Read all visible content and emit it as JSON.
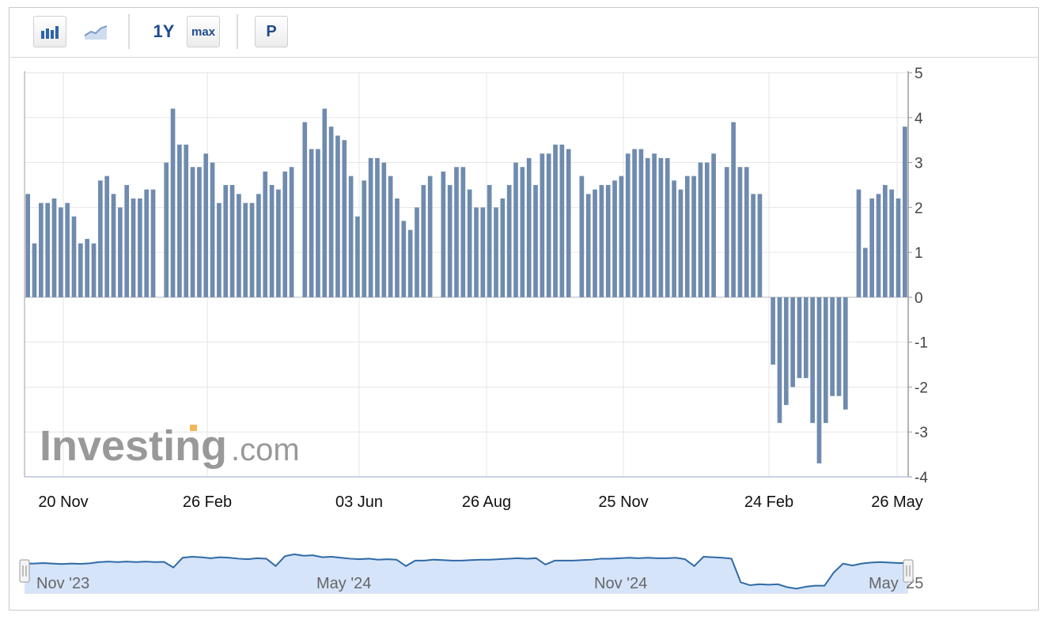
{
  "toolbar": {
    "range_1y": "1Y",
    "range_max": "max",
    "p_button": "P"
  },
  "watermark": {
    "brand": "Investing",
    "suffix": ".com"
  },
  "navigator": {
    "labels": [
      "Nov '23",
      "May '24",
      "Nov '24",
      "May '25"
    ]
  },
  "colors": {
    "bar": "#6f8bae",
    "nav_fill": "#d6e4fa",
    "nav_line": "#2e6aa6",
    "grid": "#e6e6e6"
  },
  "chart_data": {
    "type": "bar",
    "ylim": [
      -4,
      5
    ],
    "yticks": [
      "5",
      "4",
      "3",
      "2",
      "1",
      "0",
      "-1",
      "-2",
      "-3",
      "-4"
    ],
    "xtick_labels": [
      "20 Nov",
      "26 Feb",
      "03 Jun",
      "26 Aug",
      "25 Nov",
      "24 Feb",
      "26 May"
    ],
    "grid": true,
    "values": [
      2.3,
      1.2,
      2.1,
      2.1,
      2.2,
      2.0,
      2.1,
      1.8,
      1.2,
      1.3,
      1.2,
      2.6,
      2.7,
      2.3,
      2.0,
      2.5,
      2.2,
      2.2,
      2.4,
      2.4,
      null,
      3.0,
      4.2,
      3.4,
      3.4,
      2.9,
      2.9,
      3.2,
      3.0,
      2.1,
      2.5,
      2.5,
      2.3,
      2.1,
      2.1,
      2.3,
      2.8,
      2.5,
      2.4,
      2.8,
      2.9,
      null,
      3.9,
      3.3,
      3.3,
      4.2,
      3.8,
      3.6,
      3.5,
      2.7,
      1.8,
      2.6,
      3.1,
      3.1,
      3.0,
      2.7,
      2.2,
      1.7,
      1.5,
      2.0,
      2.5,
      2.7,
      null,
      2.8,
      2.5,
      2.9,
      2.9,
      2.4,
      2.0,
      2.0,
      2.5,
      2.0,
      2.2,
      2.5,
      3.0,
      2.9,
      3.1,
      2.5,
      3.2,
      3.2,
      3.4,
      3.4,
      3.3,
      null,
      2.7,
      2.3,
      2.4,
      2.5,
      2.5,
      2.6,
      2.7,
      3.2,
      3.3,
      3.3,
      3.1,
      3.2,
      3.1,
      3.1,
      2.6,
      2.4,
      2.7,
      2.7,
      3.0,
      3.0,
      3.2,
      null,
      2.9,
      3.9,
      2.9,
      2.9,
      2.3,
      2.3,
      null,
      -1.5,
      -2.8,
      -2.4,
      -2.0,
      -1.8,
      -1.8,
      -2.8,
      -3.7,
      -2.8,
      -2.2,
      -2.2,
      -2.5,
      null,
      2.4,
      1.1,
      2.2,
      2.3,
      2.5,
      2.4,
      2.2,
      3.8
    ],
    "navigator_series": [
      2.0,
      2.0,
      2.1,
      2.0,
      1.9,
      2.0,
      1.95,
      2.05,
      2.3,
      2.4,
      2.3,
      2.4,
      2.3,
      2.4,
      2.3,
      2.35,
      1.2,
      3.2,
      3.4,
      3.3,
      3.1,
      3.3,
      3.2,
      3.0,
      2.9,
      3.1,
      3.0,
      1.5,
      3.5,
      3.9,
      3.6,
      3.7,
      3.3,
      3.4,
      3.2,
      3.0,
      2.9,
      3.0,
      2.8,
      2.9,
      2.8,
      1.5,
      2.6,
      2.6,
      2.8,
      2.7,
      2.6,
      2.6,
      2.7,
      2.8,
      2.8,
      2.9,
      3.0,
      3.1,
      3.0,
      3.1,
      1.8,
      2.6,
      2.6,
      2.6,
      2.7,
      2.8,
      3.0,
      3.0,
      3.1,
      3.2,
      3.1,
      3.2,
      3.1,
      3.1,
      3.2,
      2.9,
      1.5,
      3.4,
      3.3,
      3.2,
      3.0,
      -1.8,
      -2.4,
      -2.2,
      -2.3,
      -2.2,
      -2.8,
      -3.1,
      -2.7,
      -2.5,
      -2.5,
      0.2,
      2.0,
      1.6,
      2.0,
      2.2,
      2.3,
      2.2,
      2.1,
      2.1
    ]
  }
}
